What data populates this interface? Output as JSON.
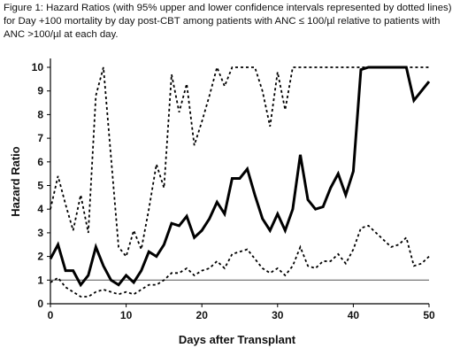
{
  "caption": "Figure 1: Hazard Ratios (with 95% upper and lower confidence intervals represented by dotted lines) for Day +100 mortality by day post-CBT among patients with ANC ≤ 100/µl relative to patients with ANC >100/µl at each day.",
  "chart_data": {
    "type": "line",
    "title": "",
    "xlabel": "Days after Transplant",
    "ylabel": "Hazard Ratio",
    "xlim": [
      0,
      50
    ],
    "ylim": [
      0,
      10
    ],
    "x_ticks": [
      0,
      10,
      20,
      30,
      40,
      50
    ],
    "y_ticks": [
      0,
      1,
      2,
      3,
      4,
      5,
      6,
      7,
      8,
      9,
      10
    ],
    "reference_line": 1,
    "colors": {
      "line": "#000000",
      "reference": "#555555"
    },
    "x": [
      0,
      1,
      2,
      3,
      4,
      5,
      6,
      7,
      8,
      9,
      10,
      11,
      12,
      13,
      14,
      15,
      16,
      17,
      18,
      19,
      20,
      21,
      22,
      23,
      24,
      25,
      26,
      27,
      28,
      29,
      30,
      31,
      32,
      33,
      34,
      35,
      36,
      37,
      38,
      39,
      40,
      41,
      42,
      43,
      44,
      45,
      46,
      47,
      48,
      49,
      50
    ],
    "series": [
      {
        "role": "hazard-ratio",
        "style": "solid",
        "values": [
          1.9,
          2.5,
          1.4,
          1.4,
          0.8,
          1.2,
          2.4,
          1.6,
          1.0,
          0.8,
          1.2,
          0.9,
          1.4,
          2.2,
          2.0,
          2.5,
          3.4,
          3.3,
          3.7,
          2.8,
          3.1,
          3.6,
          4.3,
          3.8,
          5.3,
          5.3,
          5.7,
          4.6,
          3.6,
          3.1,
          3.8,
          3.1,
          4.0,
          6.3,
          4.4,
          4.0,
          4.1,
          4.9,
          5.5,
          4.6,
          5.6,
          9.9,
          10.0,
          10.0,
          10.0,
          10.0,
          10.0,
          10.0,
          8.6,
          9.0,
          9.4
        ]
      },
      {
        "role": "upper-95-ci",
        "style": "dotted",
        "values": [
          4.0,
          5.4,
          4.2,
          3.1,
          4.6,
          3.0,
          8.8,
          10.0,
          6.2,
          2.4,
          2.0,
          3.1,
          2.3,
          4.0,
          5.9,
          4.9,
          9.7,
          8.1,
          9.3,
          6.7,
          7.7,
          8.8,
          10.0,
          9.2,
          10.0,
          10.0,
          10.0,
          10.0,
          9.0,
          7.5,
          9.8,
          8.2,
          10.0,
          10.0,
          10.0,
          10.0,
          10.0,
          10.0,
          10.0,
          10.0,
          10.0,
          10.0,
          10.0,
          10.0,
          10.0,
          10.0,
          10.0,
          10.0,
          10.0,
          10.0,
          10.0
        ]
      },
      {
        "role": "lower-95-ci",
        "style": "dotted",
        "values": [
          0.9,
          1.1,
          0.7,
          0.5,
          0.3,
          0.3,
          0.5,
          0.6,
          0.5,
          0.4,
          0.5,
          0.4,
          0.6,
          0.8,
          0.8,
          1.0,
          1.3,
          1.3,
          1.5,
          1.2,
          1.4,
          1.5,
          1.8,
          1.5,
          2.1,
          2.2,
          2.3,
          1.9,
          1.5,
          1.3,
          1.5,
          1.2,
          1.6,
          2.4,
          1.6,
          1.5,
          1.8,
          1.8,
          2.1,
          1.7,
          2.3,
          3.2,
          3.3,
          3.0,
          2.7,
          2.4,
          2.5,
          2.8,
          1.6,
          1.7,
          2.0
        ]
      }
    ]
  }
}
